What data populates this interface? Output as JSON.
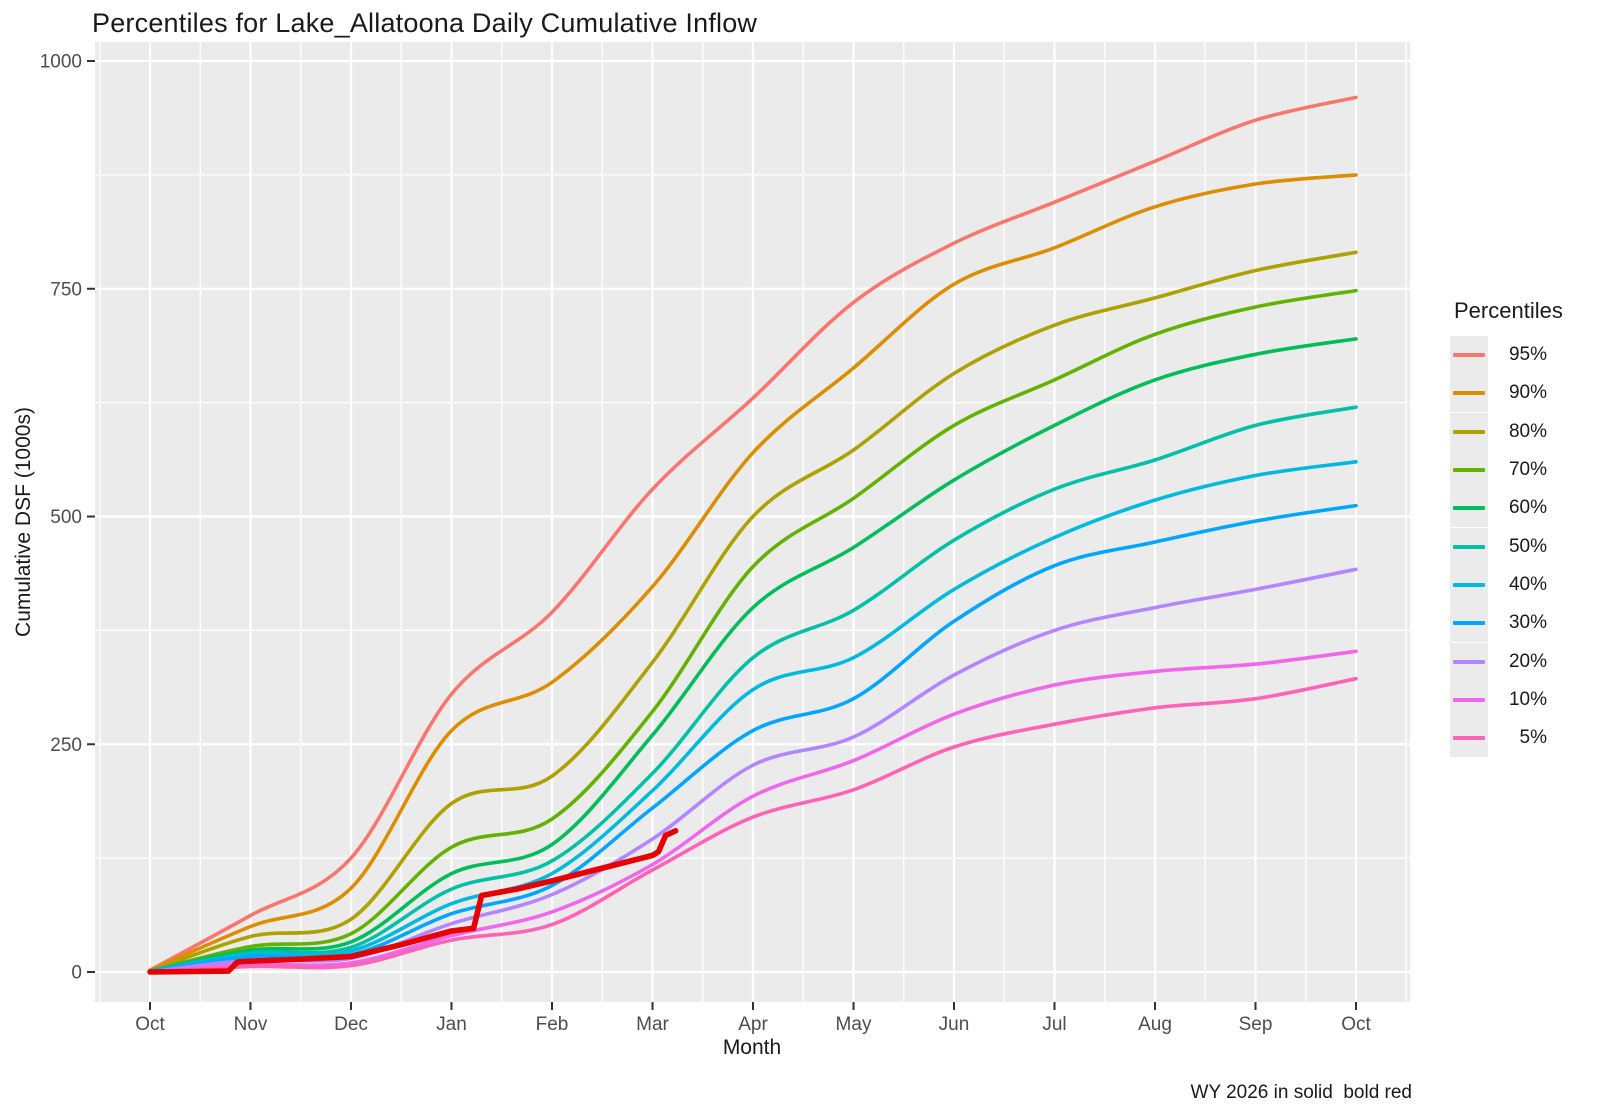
{
  "figure": {
    "title": "Percentiles for Lake_Allatoona Daily Cumulative Inflow",
    "caption": "WY 2026 in solid  bold red"
  },
  "colors": {
    "panel_background": "#ebebeb",
    "gridline": "#ffffff",
    "tick_mark": "#333333",
    "tick_text": "#4d4d4d",
    "text": "#1a1a1a",
    "highlight_red": "#e60000"
  },
  "chart_data": {
    "type": "line",
    "title": "Percentiles for Lake_Allatoona Daily Cumulative Inflow",
    "xlabel": "Month",
    "ylabel": "Cumulative DSF (1000s)",
    "legend_title": "Percentiles",
    "legend_position": "right",
    "grid": true,
    "x_tick_labels": [
      "Oct",
      "Nov",
      "Dec",
      "Jan",
      "Feb",
      "Mar",
      "Apr",
      "May",
      "Jun",
      "Jul",
      "Aug",
      "Sep",
      "Oct"
    ],
    "y_ticks": [
      0,
      250,
      500,
      750,
      1000
    ],
    "ylim": [
      -35,
      1020
    ],
    "series": [
      {
        "name": "95%",
        "color": "#F8766D",
        "values": [
          2,
          62,
          125,
          305,
          395,
          530,
          630,
          735,
          800,
          845,
          890,
          935,
          960
        ]
      },
      {
        "name": "90%",
        "color": "#DB8E00",
        "values": [
          2,
          50,
          92,
          265,
          318,
          423,
          570,
          663,
          755,
          795,
          840,
          865,
          875
        ]
      },
      {
        "name": "80%",
        "color": "#AEA200",
        "values": [
          1,
          39,
          58,
          185,
          215,
          340,
          500,
          573,
          657,
          710,
          740,
          770,
          790
        ]
      },
      {
        "name": "70%",
        "color": "#64B200",
        "values": [
          1,
          28,
          42,
          137,
          168,
          286,
          445,
          520,
          600,
          650,
          700,
          730,
          748
        ]
      },
      {
        "name": "60%",
        "color": "#00BD5C",
        "values": [
          1,
          24,
          33,
          108,
          140,
          260,
          400,
          466,
          540,
          600,
          650,
          678,
          695
        ]
      },
      {
        "name": "50%",
        "color": "#00C1A7",
        "values": [
          1,
          21,
          27,
          91,
          122,
          218,
          345,
          397,
          474,
          530,
          562,
          600,
          620
        ]
      },
      {
        "name": "40%",
        "color": "#00BADE",
        "values": [
          1,
          19,
          23,
          75,
          108,
          199,
          310,
          345,
          420,
          477,
          518,
          545,
          560
        ]
      },
      {
        "name": "30%",
        "color": "#00A6FF",
        "values": [
          1,
          17,
          19,
          64,
          95,
          180,
          265,
          300,
          385,
          446,
          472,
          495,
          512
        ]
      },
      {
        "name": "20%",
        "color": "#B385FF",
        "values": [
          0,
          13,
          15,
          53,
          85,
          146,
          227,
          258,
          326,
          375,
          400,
          420,
          442
        ]
      },
      {
        "name": "10%",
        "color": "#EF67EB",
        "values": [
          0,
          8,
          10,
          40,
          66,
          118,
          193,
          232,
          283,
          315,
          330,
          338,
          352
        ]
      },
      {
        "name": "5%",
        "color": "#FF63B6",
        "values": [
          0,
          6,
          7,
          35,
          52,
          112,
          170,
          200,
          247,
          272,
          290,
          300,
          322
        ]
      }
    ],
    "highlight_series": {
      "name": "WY 2026",
      "color": "#e60000",
      "style": "solid bold",
      "x_months": [
        0,
        0.78,
        0.87,
        1.0,
        1.5,
        2.0,
        2.5,
        3.0,
        3.22,
        3.3,
        3.65,
        4.0,
        4.5,
        5.0,
        5.06,
        5.13,
        5.23
      ],
      "values": [
        0,
        1,
        11,
        12,
        14,
        17,
        30,
        45,
        48,
        84,
        91,
        100,
        114,
        128,
        132,
        150,
        155
      ]
    }
  }
}
